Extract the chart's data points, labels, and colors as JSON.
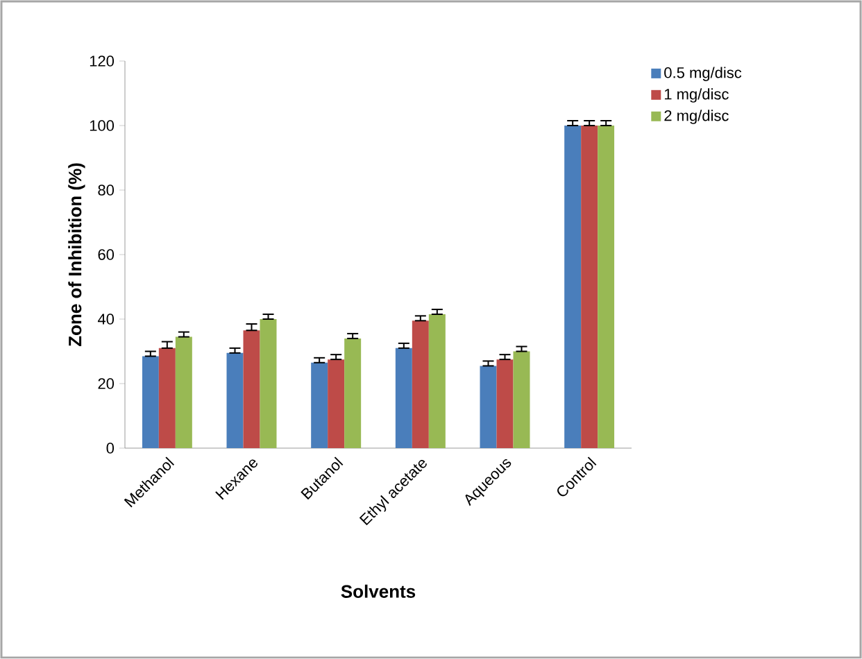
{
  "chart_data": {
    "type": "bar",
    "xlabel": "Solvents",
    "ylabel": "Zone of Inhibition  (%)",
    "categories": [
      "Methanol",
      "Hexane",
      "Butanol",
      "Ethyl acetate",
      "Aqueous",
      "Control"
    ],
    "series": [
      {
        "name": "0.5 mg/disc",
        "color": "#4a7ebb",
        "values": [
          28.5,
          29.5,
          26.5,
          31,
          25.5,
          100
        ],
        "errors": [
          [
            28.5,
            30
          ],
          [
            29.5,
            31
          ],
          [
            26.5,
            28
          ],
          [
            31,
            32.5
          ],
          [
            25.5,
            27
          ],
          [
            100,
            101.5
          ]
        ]
      },
      {
        "name": "1 mg/disc",
        "color": "#be4b48",
        "values": [
          31,
          36.5,
          27.5,
          39.5,
          27.5,
          100
        ],
        "errors": [
          [
            31,
            33
          ],
          [
            36.5,
            38.5
          ],
          [
            27.5,
            29
          ],
          [
            39.5,
            41
          ],
          [
            27.5,
            29
          ],
          [
            100,
            101.5
          ]
        ]
      },
      {
        "name": "2 mg/disc",
        "color": "#98b954",
        "values": [
          34.5,
          40,
          34,
          41.5,
          30,
          100
        ],
        "errors": [
          [
            34.5,
            36
          ],
          [
            40,
            41.5
          ],
          [
            34,
            35.5
          ],
          [
            41.5,
            43
          ],
          [
            30,
            31.5
          ],
          [
            100,
            101.5
          ]
        ]
      }
    ],
    "ylim": [
      0,
      120
    ],
    "yticks": [
      0,
      20,
      40,
      60,
      80,
      100,
      120
    ],
    "grid": false,
    "legend": "top right"
  }
}
